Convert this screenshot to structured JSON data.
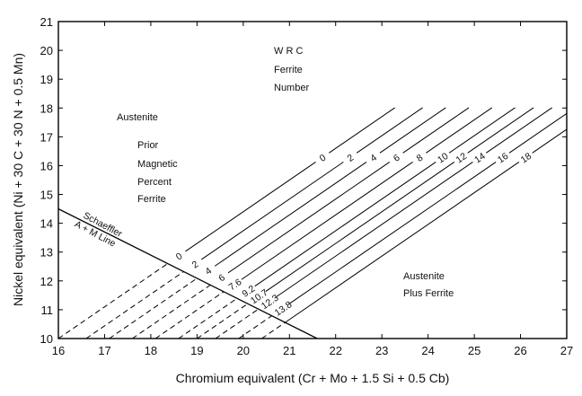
{
  "chart_data": {
    "type": "line",
    "title": "",
    "xlabel": "Chromium equivalent (Cr + Mo + 1.5 Si + 0.5 Cb)",
    "ylabel": "Nickel equivalent (Ni + 30 C + 30 N + 0.5 Mn)",
    "xlim": [
      16,
      27
    ],
    "ylim": [
      10,
      21
    ],
    "x_ticks": [
      "16",
      "17",
      "18",
      "19",
      "20",
      "21",
      "22",
      "23",
      "24",
      "25",
      "26",
      "27"
    ],
    "y_ticks": [
      "10",
      "11",
      "12",
      "13",
      "14",
      "15",
      "16",
      "17",
      "18",
      "19",
      "20",
      "21"
    ],
    "grid": false,
    "legend": "none",
    "iso_line_slope": 1.1,
    "iso_lines": [
      {
        "x0": 16.0,
        "x_end": 22.0,
        "upper_label": "0",
        "lower_label": "0"
      },
      {
        "x0": 16.6,
        "x_end": 22.6,
        "upper_label": "2",
        "lower_label": "2"
      },
      {
        "x0": 17.1,
        "x_end": 23.1,
        "upper_label": "4",
        "lower_label": "4"
      },
      {
        "x0": 17.6,
        "x_end": 23.6,
        "upper_label": "6",
        "lower_label": "6"
      },
      {
        "x0": 18.1,
        "x_end": 24.1,
        "upper_label": "8",
        "lower_label": "7.6"
      },
      {
        "x0": 18.6,
        "x_end": 24.6,
        "upper_label": "10",
        "lower_label": "9.2"
      },
      {
        "x0": 19.0,
        "x_end": 25.0,
        "upper_label": "12",
        "lower_label": "10.7"
      },
      {
        "x0": 19.4,
        "x_end": 25.4,
        "upper_label": "14",
        "lower_label": "12.3"
      },
      {
        "x0": 19.9,
        "x_end": 25.9,
        "upper_label": "16",
        "lower_label": "13.8"
      },
      {
        "x0": 20.4,
        "x_end": 26.4,
        "upper_label": "18",
        "lower_label": ""
      }
    ],
    "schaeffler_line": {
      "x": [
        16.0,
        21.6
      ],
      "y": [
        14.5,
        10.0
      ],
      "label_line1": "Schaeffler",
      "label_line2": "A + M Line"
    },
    "region_labels": {
      "wrc_line1": "W R C",
      "wrc_line2": "Ferrite",
      "wrc_line3": "Number",
      "austenite": "Austenite",
      "prior_line1": "Prior",
      "prior_line2": "Magnetic",
      "prior_line3": "Percent",
      "prior_line4": "Ferrite",
      "af_line1": "Austenite",
      "af_line2": "Plus Ferrite"
    }
  }
}
